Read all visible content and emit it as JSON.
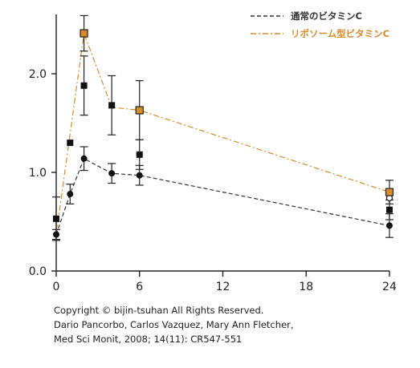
{
  "chart_data": {
    "type": "line",
    "xlabel": "",
    "ylabel": "",
    "xlim": [
      0,
      24.5
    ],
    "ylim": [
      0,
      2.5
    ],
    "xticks": [
      0,
      6,
      12,
      18,
      24
    ],
    "xtick_labels": [
      "0",
      "6",
      "12",
      "18",
      "24"
    ],
    "yticks": [
      0,
      1,
      2
    ],
    "ytick_labels": [
      "0.0",
      "1.0",
      "2.0"
    ],
    "grid": false,
    "legend_position": "top-right",
    "series": [
      {
        "name": "通常のビタミンC",
        "color": "#333333",
        "line_style": "dashed",
        "x": [
          0,
          1,
          2,
          4,
          6,
          24
        ],
        "y": [
          0.37,
          0.78,
          1.14,
          0.99,
          0.97,
          0.46
        ],
        "err": [
          0.05,
          0.1,
          0.12,
          0.1,
          0.1,
          0.12
        ],
        "markers": [
          {
            "x": 0,
            "y": 0.37,
            "shape": "circle",
            "err": 0.05
          },
          {
            "x": 1,
            "y": 0.78,
            "shape": "circle",
            "err": 0.1
          },
          {
            "x": 2,
            "y": 1.14,
            "shape": "circle",
            "err": 0.12
          },
          {
            "x": 4,
            "y": 0.99,
            "shape": "circle",
            "err": 0.1
          },
          {
            "x": 6,
            "y": 0.97,
            "shape": "circle",
            "err": 0.1
          },
          {
            "x": 24,
            "y": 0.46,
            "shape": "circle",
            "err": 0.12
          },
          {
            "x": 0,
            "y": 0.53,
            "shape": "square",
            "err": 0.22
          },
          {
            "x": 1,
            "y": 1.3,
            "shape": "square",
            "err": 0.0
          },
          {
            "x": 2,
            "y": 1.88,
            "shape": "square",
            "err": 0.3
          },
          {
            "x": 4,
            "y": 1.68,
            "shape": "square",
            "err": 0.3
          },
          {
            "x": 6,
            "y": 1.18,
            "shape": "square",
            "err": 0.15
          },
          {
            "x": 24,
            "y": 0.62,
            "shape": "square",
            "err": 0.1
          },
          {
            "x": 24,
            "y": 0.74,
            "shape": "open-circle",
            "err": 0.0
          }
        ]
      },
      {
        "name": "リポソーム型ビタミンC",
        "color": "#d98c2b",
        "line_style": "dash-dot",
        "x": [
          0,
          2,
          4,
          6,
          24
        ],
        "y": [
          0.37,
          2.41,
          1.66,
          1.63,
          0.8
        ],
        "err": [
          0.0,
          0.18,
          0.3,
          0.3,
          0.12
        ],
        "markers": [
          {
            "x": 2,
            "y": 2.41,
            "shape": "square",
            "err": 0.18
          },
          {
            "x": 6,
            "y": 1.63,
            "shape": "square",
            "err": 0.3
          },
          {
            "x": 24,
            "y": 0.8,
            "shape": "square",
            "err": 0.12
          }
        ]
      }
    ]
  },
  "credits": {
    "copyright": "Copyright © bijin-tsuhan All Rights Reserved.",
    "authors": "Dario Pancorbo, Carlos Vazquez, Mary Ann Fletcher,",
    "journal": "Med Sci Monit, 2008; 14(11): CR547-551"
  }
}
